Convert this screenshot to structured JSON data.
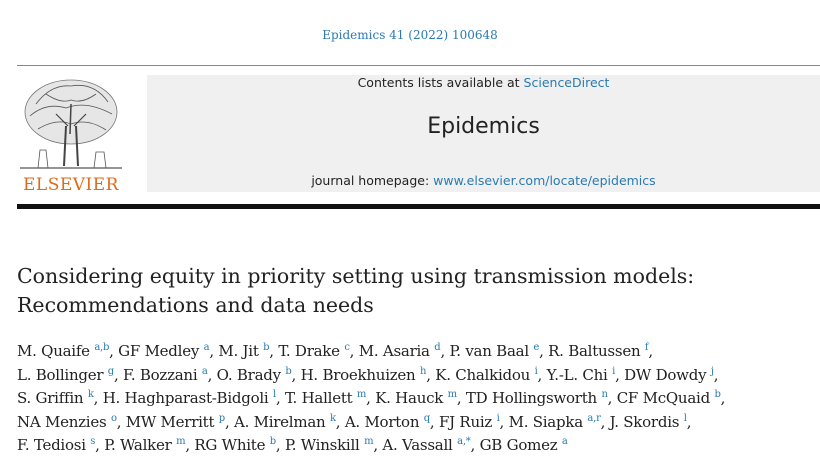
{
  "header": {
    "citation": "Epidemics 41 (2022) 100648",
    "contents_prefix": "Contents lists available at ",
    "contents_link": "ScienceDirect",
    "journal": "Epidemics",
    "homepage_prefix": "journal homepage: ",
    "homepage_link": "www.elsevier.com/locate/epidemics",
    "publisher": "ELSEVIER"
  },
  "colors": {
    "link": "#2a7ab0",
    "publisher": "#e06a1b",
    "banner": "#f0f0f0"
  },
  "article": {
    "title_line1": "Considering equity in priority setting using transmission models:",
    "title_line2": "Recommendations and data needs"
  },
  "author_lines": [
    [
      {
        "name": "M. Quaife",
        "aff": "a,b",
        "sep": ", "
      },
      {
        "name": "GF Medley",
        "aff": "a",
        "sep": ", "
      },
      {
        "name": "M. Jit",
        "aff": "b",
        "sep": ", "
      },
      {
        "name": "T. Drake",
        "aff": "c",
        "sep": ", "
      },
      {
        "name": "M. Asaria",
        "aff": "d",
        "sep": ", "
      },
      {
        "name": "P. van Baal",
        "aff": "e",
        "sep": ", "
      },
      {
        "name": "R. Baltussen",
        "aff": "f",
        "sep": ","
      }
    ],
    [
      {
        "name": "L. Bollinger",
        "aff": "g",
        "sep": ", "
      },
      {
        "name": "F. Bozzani",
        "aff": "a",
        "sep": ", "
      },
      {
        "name": "O. Brady",
        "aff": "b",
        "sep": ", "
      },
      {
        "name": "H. Broekhuizen",
        "aff": "h",
        "sep": ", "
      },
      {
        "name": "K. Chalkidou",
        "aff": "i",
        "sep": ", "
      },
      {
        "name": "Y.-L. Chi",
        "aff": "i",
        "sep": ", "
      },
      {
        "name": "DW Dowdy",
        "aff": "j",
        "sep": ","
      }
    ],
    [
      {
        "name": "S. Griffin",
        "aff": "k",
        "sep": ", "
      },
      {
        "name": "H. Haghparast-Bidgoli",
        "aff": "l",
        "sep": ", "
      },
      {
        "name": "T. Hallett",
        "aff": "m",
        "sep": ", "
      },
      {
        "name": "K. Hauck",
        "aff": "m",
        "sep": ", "
      },
      {
        "name": "TD Hollingsworth",
        "aff": "n",
        "sep": ", "
      },
      {
        "name": "CF McQuaid",
        "aff": "b",
        "sep": ","
      }
    ],
    [
      {
        "name": "NA Menzies",
        "aff": "o",
        "sep": ", "
      },
      {
        "name": "MW Merritt",
        "aff": "p",
        "sep": ", "
      },
      {
        "name": "A. Mirelman",
        "aff": "k",
        "sep": ", "
      },
      {
        "name": "A. Morton",
        "aff": "q",
        "sep": ", "
      },
      {
        "name": "FJ Ruiz",
        "aff": "i",
        "sep": ", "
      },
      {
        "name": "M. Siapka",
        "aff": "a,r",
        "sep": ", "
      },
      {
        "name": "J. Skordis",
        "aff": "l",
        "sep": ","
      }
    ],
    [
      {
        "name": "F. Tediosi",
        "aff": "s",
        "sep": ", "
      },
      {
        "name": "P. Walker",
        "aff": "m",
        "sep": ", "
      },
      {
        "name": "RG White",
        "aff": "b",
        "sep": ", "
      },
      {
        "name": "P. Winskill",
        "aff": "m",
        "sep": ", "
      },
      {
        "name": "A. Vassall",
        "aff": "a,*",
        "sep": ", "
      },
      {
        "name": "GB Gomez",
        "aff": "a",
        "sep": ""
      }
    ]
  ]
}
